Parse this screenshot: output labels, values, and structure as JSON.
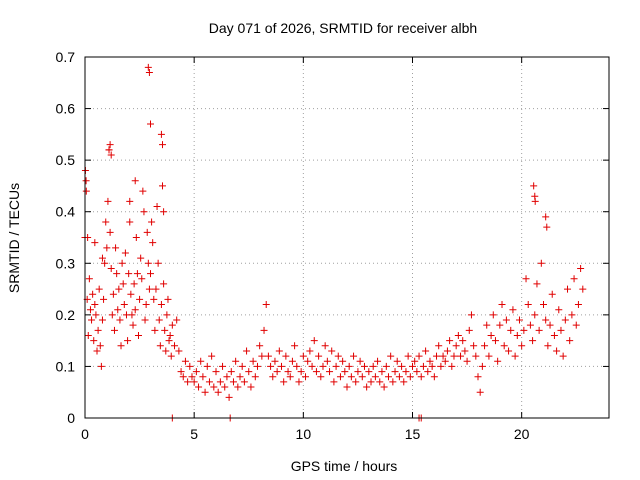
{
  "chart_data": {
    "type": "scatter",
    "title": "Day 071 of 2026, SRMTID for receiver albh",
    "xlabel": "GPS time / hours",
    "ylabel": "SRMTID / TECUs",
    "xlim": [
      0,
      24
    ],
    "ylim": [
      0,
      0.7
    ],
    "xticks": [
      0,
      5,
      10,
      15,
      20
    ],
    "xtick_labels": [
      "0",
      "5",
      "10",
      "15",
      "20"
    ],
    "yticks": [
      0,
      0.1,
      0.2,
      0.3,
      0.4,
      0.5,
      0.6,
      0.7
    ],
    "ytick_labels": [
      "0",
      "0.1",
      "0.2",
      "0.3",
      "0.4",
      "0.5",
      "0.6",
      "0.7"
    ],
    "grid": true,
    "marker": "+",
    "color": "#e00000",
    "series": [
      {
        "name": "SRMTID",
        "x": [
          0.0,
          0.05,
          0.1,
          0.15,
          0.2,
          0.25,
          0.3,
          0.35,
          0.4,
          0.45,
          0.5,
          0.55,
          0.6,
          0.65,
          0.7,
          0.75,
          0.8,
          0.85,
          0.9,
          0.95,
          1.0,
          1.05,
          1.1,
          1.15,
          1.2,
          1.25,
          1.3,
          1.35,
          1.4,
          1.45,
          1.5,
          1.55,
          1.6,
          1.65,
          1.7,
          1.75,
          1.8,
          1.85,
          1.9,
          1.95,
          2.0,
          2.05,
          2.1,
          2.15,
          2.2,
          2.25,
          2.3,
          2.35,
          2.4,
          2.45,
          2.5,
          2.55,
          2.6,
          2.65,
          2.7,
          2.75,
          2.8,
          2.85,
          2.9,
          2.95,
          3.0,
          3.05,
          3.1,
          3.15,
          3.2,
          3.25,
          3.3,
          3.35,
          3.4,
          3.45,
          3.5,
          3.55,
          3.6,
          3.65,
          3.7,
          3.75,
          3.8,
          3.85,
          3.9,
          3.95,
          4.0,
          4.1,
          4.2,
          4.3,
          4.4,
          4.5,
          4.6,
          4.7,
          4.8,
          4.9,
          5.0,
          5.1,
          5.2,
          5.3,
          5.4,
          5.5,
          5.6,
          5.7,
          5.8,
          5.9,
          6.0,
          6.1,
          6.2,
          6.3,
          6.4,
          6.5,
          6.6,
          6.7,
          6.8,
          6.9,
          7.0,
          7.1,
          7.2,
          7.3,
          7.4,
          7.5,
          7.6,
          7.7,
          7.8,
          7.9,
          8.0,
          8.1,
          8.2,
          8.3,
          8.4,
          8.5,
          8.6,
          8.7,
          8.8,
          8.9,
          9.0,
          9.1,
          9.2,
          9.3,
          9.4,
          9.5,
          9.6,
          9.7,
          9.8,
          9.9,
          10.0,
          10.1,
          10.2,
          10.3,
          10.4,
          10.5,
          10.6,
          10.7,
          10.8,
          10.9,
          11.0,
          11.1,
          11.2,
          11.3,
          11.4,
          11.5,
          11.6,
          11.7,
          11.8,
          11.9,
          12.0,
          12.1,
          12.2,
          12.3,
          12.4,
          12.5,
          12.6,
          12.7,
          12.8,
          12.9,
          13.0,
          13.1,
          13.2,
          13.3,
          13.4,
          13.5,
          13.6,
          13.7,
          13.8,
          13.9,
          14.0,
          14.1,
          14.2,
          14.3,
          14.4,
          14.5,
          14.6,
          14.7,
          14.8,
          14.9,
          15.0,
          15.1,
          15.2,
          15.3,
          15.4,
          15.5,
          15.6,
          15.7,
          15.8,
          15.9,
          16.0,
          16.1,
          16.2,
          16.3,
          16.4,
          16.5,
          16.6,
          16.7,
          16.8,
          16.9,
          17.0,
          17.1,
          17.2,
          17.3,
          17.4,
          17.5,
          17.6,
          17.7,
          17.8,
          17.9,
          18.0,
          18.1,
          18.2,
          18.3,
          18.4,
          18.5,
          18.6,
          18.7,
          18.8,
          18.9,
          19.0,
          19.1,
          19.2,
          19.3,
          19.4,
          19.5,
          19.6,
          19.7,
          19.8,
          19.9,
          20.0,
          20.1,
          20.2,
          20.3,
          20.4,
          20.5,
          20.6,
          20.7,
          20.8,
          20.9,
          21.0,
          21.1,
          21.2,
          21.3,
          21.4,
          21.5,
          21.6,
          21.7,
          21.8,
          21.9,
          22.0,
          22.1,
          22.2,
          22.3,
          22.4,
          22.5,
          22.6,
          22.7,
          22.8,
          0.02,
          0.06,
          0.12,
          1.1,
          1.15,
          1.2,
          2.9,
          2.95,
          3.5,
          3.55,
          3.6,
          20.55,
          20.6,
          20.62,
          21.1,
          21.15,
          3.0,
          2.3,
          2.05,
          0.45,
          0.8,
          6.65,
          15.3,
          15.4,
          4.0
        ],
        "y": [
          0.35,
          0.46,
          0.23,
          0.16,
          0.27,
          0.21,
          0.19,
          0.24,
          0.15,
          0.22,
          0.2,
          0.13,
          0.17,
          0.25,
          0.14,
          0.1,
          0.19,
          0.23,
          0.3,
          0.38,
          0.33,
          0.42,
          0.52,
          0.36,
          0.29,
          0.2,
          0.24,
          0.17,
          0.33,
          0.28,
          0.21,
          0.25,
          0.19,
          0.14,
          0.3,
          0.26,
          0.22,
          0.32,
          0.2,
          0.15,
          0.28,
          0.38,
          0.24,
          0.2,
          0.18,
          0.26,
          0.21,
          0.35,
          0.28,
          0.16,
          0.23,
          0.31,
          0.27,
          0.44,
          0.4,
          0.19,
          0.22,
          0.36,
          0.3,
          0.25,
          0.28,
          0.38,
          0.34,
          0.23,
          0.17,
          0.25,
          0.41,
          0.3,
          0.19,
          0.14,
          0.22,
          0.45,
          0.26,
          0.17,
          0.13,
          0.2,
          0.23,
          0.15,
          0.16,
          0.12,
          0.18,
          0.14,
          0.19,
          0.13,
          0.09,
          0.08,
          0.11,
          0.07,
          0.1,
          0.08,
          0.07,
          0.09,
          0.06,
          0.11,
          0.08,
          0.05,
          0.1,
          0.07,
          0.12,
          0.06,
          0.09,
          0.05,
          0.07,
          0.1,
          0.06,
          0.08,
          0.04,
          0.09,
          0.07,
          0.11,
          0.06,
          0.08,
          0.1,
          0.07,
          0.13,
          0.09,
          0.06,
          0.11,
          0.08,
          0.1,
          0.14,
          0.12,
          0.17,
          0.22,
          0.12,
          0.1,
          0.08,
          0.11,
          0.09,
          0.13,
          0.1,
          0.07,
          0.12,
          0.09,
          0.08,
          0.11,
          0.14,
          0.1,
          0.07,
          0.09,
          0.12,
          0.08,
          0.11,
          0.13,
          0.1,
          0.15,
          0.09,
          0.12,
          0.08,
          0.1,
          0.14,
          0.11,
          0.09,
          0.13,
          0.07,
          0.1,
          0.12,
          0.08,
          0.11,
          0.09,
          0.06,
          0.1,
          0.08,
          0.12,
          0.07,
          0.09,
          0.11,
          0.08,
          0.1,
          0.06,
          0.09,
          0.07,
          0.1,
          0.08,
          0.11,
          0.07,
          0.09,
          0.06,
          0.1,
          0.08,
          0.12,
          0.07,
          0.09,
          0.11,
          0.08,
          0.1,
          0.07,
          0.09,
          0.12,
          0.08,
          0.1,
          0.11,
          0.09,
          0.12,
          0.08,
          0.1,
          0.13,
          0.09,
          0.11,
          0.1,
          0.08,
          0.12,
          0.14,
          0.1,
          0.12,
          0.11,
          0.13,
          0.15,
          0.1,
          0.12,
          0.14,
          0.16,
          0.12,
          0.15,
          0.13,
          0.11,
          0.17,
          0.2,
          0.14,
          0.12,
          0.08,
          0.05,
          0.1,
          0.14,
          0.18,
          0.12,
          0.16,
          0.2,
          0.15,
          0.11,
          0.18,
          0.22,
          0.14,
          0.19,
          0.13,
          0.17,
          0.21,
          0.12,
          0.16,
          0.19,
          0.14,
          0.17,
          0.27,
          0.22,
          0.18,
          0.15,
          0.2,
          0.26,
          0.17,
          0.3,
          0.22,
          0.19,
          0.14,
          0.18,
          0.24,
          0.16,
          0.13,
          0.21,
          0.17,
          0.12,
          0.19,
          0.25,
          0.15,
          0.2,
          0.27,
          0.18,
          0.22,
          0.29,
          0.25,
          0.48,
          0.44,
          0.35,
          0.52,
          0.53,
          0.51,
          0.68,
          0.67,
          0.55,
          0.53,
          0.4,
          0.45,
          0.43,
          0.42,
          0.39,
          0.37,
          0.57,
          0.46,
          0.42,
          0.34,
          0.31,
          0.0,
          0.0,
          0.0,
          0.0
        ]
      }
    ]
  }
}
